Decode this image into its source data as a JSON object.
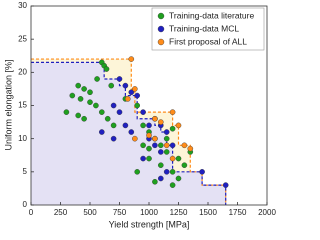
{
  "chart_data": {
    "type": "scatter",
    "x_label": "Yield strength [MPa]",
    "y_label": "Uniform elongation [%]",
    "xlim": [
      0,
      2000
    ],
    "ylim": [
      0,
      30
    ],
    "xticks": [
      0,
      250,
      500,
      750,
      1000,
      1250,
      1500,
      1750,
      2000
    ],
    "yticks": [
      0,
      5,
      10,
      15,
      20,
      25,
      30
    ],
    "legend": "upper right",
    "series": [
      {
        "name": "Training-data literature",
        "color": "#1fa01f",
        "x": [
          600,
          620,
          640,
          560,
          680,
          400,
          450,
          500,
          350,
          420,
          500,
          550,
          300,
          400,
          450,
          600,
          650,
          700,
          800,
          900,
          950,
          1000,
          1050,
          1100,
          1150,
          1000,
          1100,
          1200,
          1250,
          1200,
          1050,
          900,
          1150,
          1250,
          1350,
          1300,
          950,
          1000,
          1200
        ],
        "y": [
          21.5,
          21,
          20.5,
          19,
          18,
          18,
          17.5,
          17,
          16.5,
          16,
          15.5,
          15,
          14,
          13.5,
          13,
          14,
          13,
          12,
          16,
          15,
          12,
          11,
          10,
          9,
          8,
          7,
          6,
          5,
          4,
          3,
          3.5,
          5,
          10,
          7,
          8,
          6,
          9,
          8.5,
          11.5
        ]
      },
      {
        "name": "Training-data MCL",
        "color": "#2020c0",
        "x": [
          750,
          800,
          850,
          700,
          750,
          800,
          850,
          900,
          950,
          1000,
          1050,
          1100,
          1150,
          1050,
          1100,
          1200,
          1150,
          1450,
          1650,
          950,
          1000,
          700,
          600,
          1100
        ],
        "y": [
          19,
          18,
          17,
          15,
          14,
          12,
          11,
          16.5,
          14,
          12,
          13,
          12,
          11,
          9,
          8,
          9,
          5,
          5,
          3,
          7,
          10,
          10,
          11,
          4
        ]
      },
      {
        "name": "First proposal of ALL",
        "color": "#ff8c1a",
        "x": [
          850,
          820,
          880,
          1050,
          1100,
          1200,
          1250,
          1300,
          1350,
          1050,
          1000,
          1150,
          1200,
          880
        ],
        "y": [
          22,
          16,
          17.5,
          13,
          12.5,
          14,
          12,
          9,
          8.5,
          10,
          10.5,
          9,
          7,
          10
        ]
      }
    ],
    "fronts": [
      {
        "color": "#ff8c1a",
        "fill": "#fdf5d8",
        "x": [
          0,
          850,
          850,
          880,
          880,
          1200,
          1200,
          1250,
          1250,
          1350,
          1350,
          1450,
          1450,
          1650,
          1650
        ],
        "y": [
          22,
          22,
          17.5,
          17.5,
          14,
          14,
          12,
          12,
          9,
          9,
          5,
          5,
          3,
          3,
          0
        ]
      },
      {
        "color": "#2020c0",
        "fill": "#e4e1f4",
        "x": [
          0,
          620,
          620,
          750,
          750,
          800,
          800,
          900,
          900,
          1050,
          1050,
          1100,
          1100,
          1150,
          1150,
          1200,
          1200,
          1450,
          1450,
          1650,
          1650
        ],
        "y": [
          21.5,
          21.5,
          19,
          19,
          18,
          18,
          16.5,
          16.5,
          13,
          13,
          12,
          12,
          11,
          11,
          9,
          9,
          5,
          5,
          3,
          3,
          0
        ]
      }
    ]
  }
}
